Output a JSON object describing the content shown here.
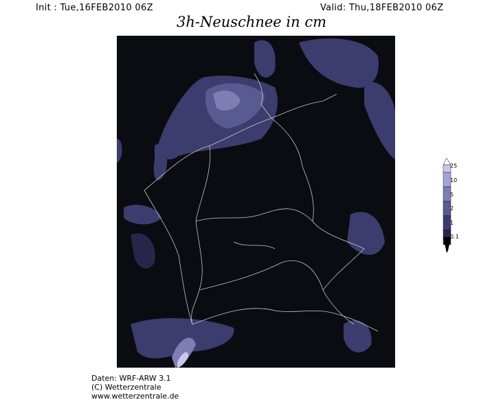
{
  "header": {
    "init": "Init : Tue,16FEB2010 06Z",
    "valid": "Valid: Thu,18FEB2010 06Z",
    "title": "3h-Neuschnee in cm"
  },
  "legend": {
    "labels": [
      "25",
      "10",
      "5",
      "2",
      "1",
      "0.1"
    ],
    "colors": [
      "#c8c8ee",
      "#a4a4d6",
      "#7e7eb4",
      "#5a5a92",
      "#3c3c6e",
      "#26264a",
      "#000000"
    ]
  },
  "map": {
    "background": "#0b0b12",
    "border_color": "#c8c8c8"
  },
  "footer": {
    "line1": "Daten: WRF-ARW 3.1",
    "line2": "(C) Wetterzentrale",
    "line3": "www.wetterzentrale.de"
  }
}
